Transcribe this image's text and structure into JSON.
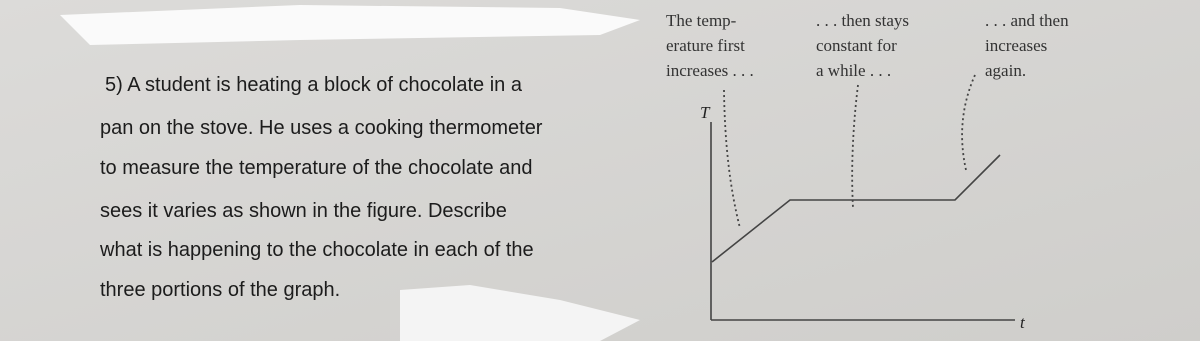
{
  "question": {
    "lines": [
      "5) A student is heating a block of chocolate in a",
      "pan on the stove. He uses a cooking thermometer",
      "to measure the temperature of the chocolate and",
      "sees it varies as shown in the figure. Describe",
      "what is happening to the chocolate in each of the",
      "three portions of the graph."
    ]
  },
  "figure": {
    "annotations": [
      {
        "lines": [
          "The temp-",
          "erature first",
          "increases . . ."
        ]
      },
      {
        "lines": [
          ". . . then stays",
          "constant for",
          "a while . . ."
        ]
      },
      {
        "lines": [
          ". . . and then",
          "increases",
          "again."
        ]
      }
    ],
    "y_axis_label": "T",
    "x_axis_label": "t"
  }
}
